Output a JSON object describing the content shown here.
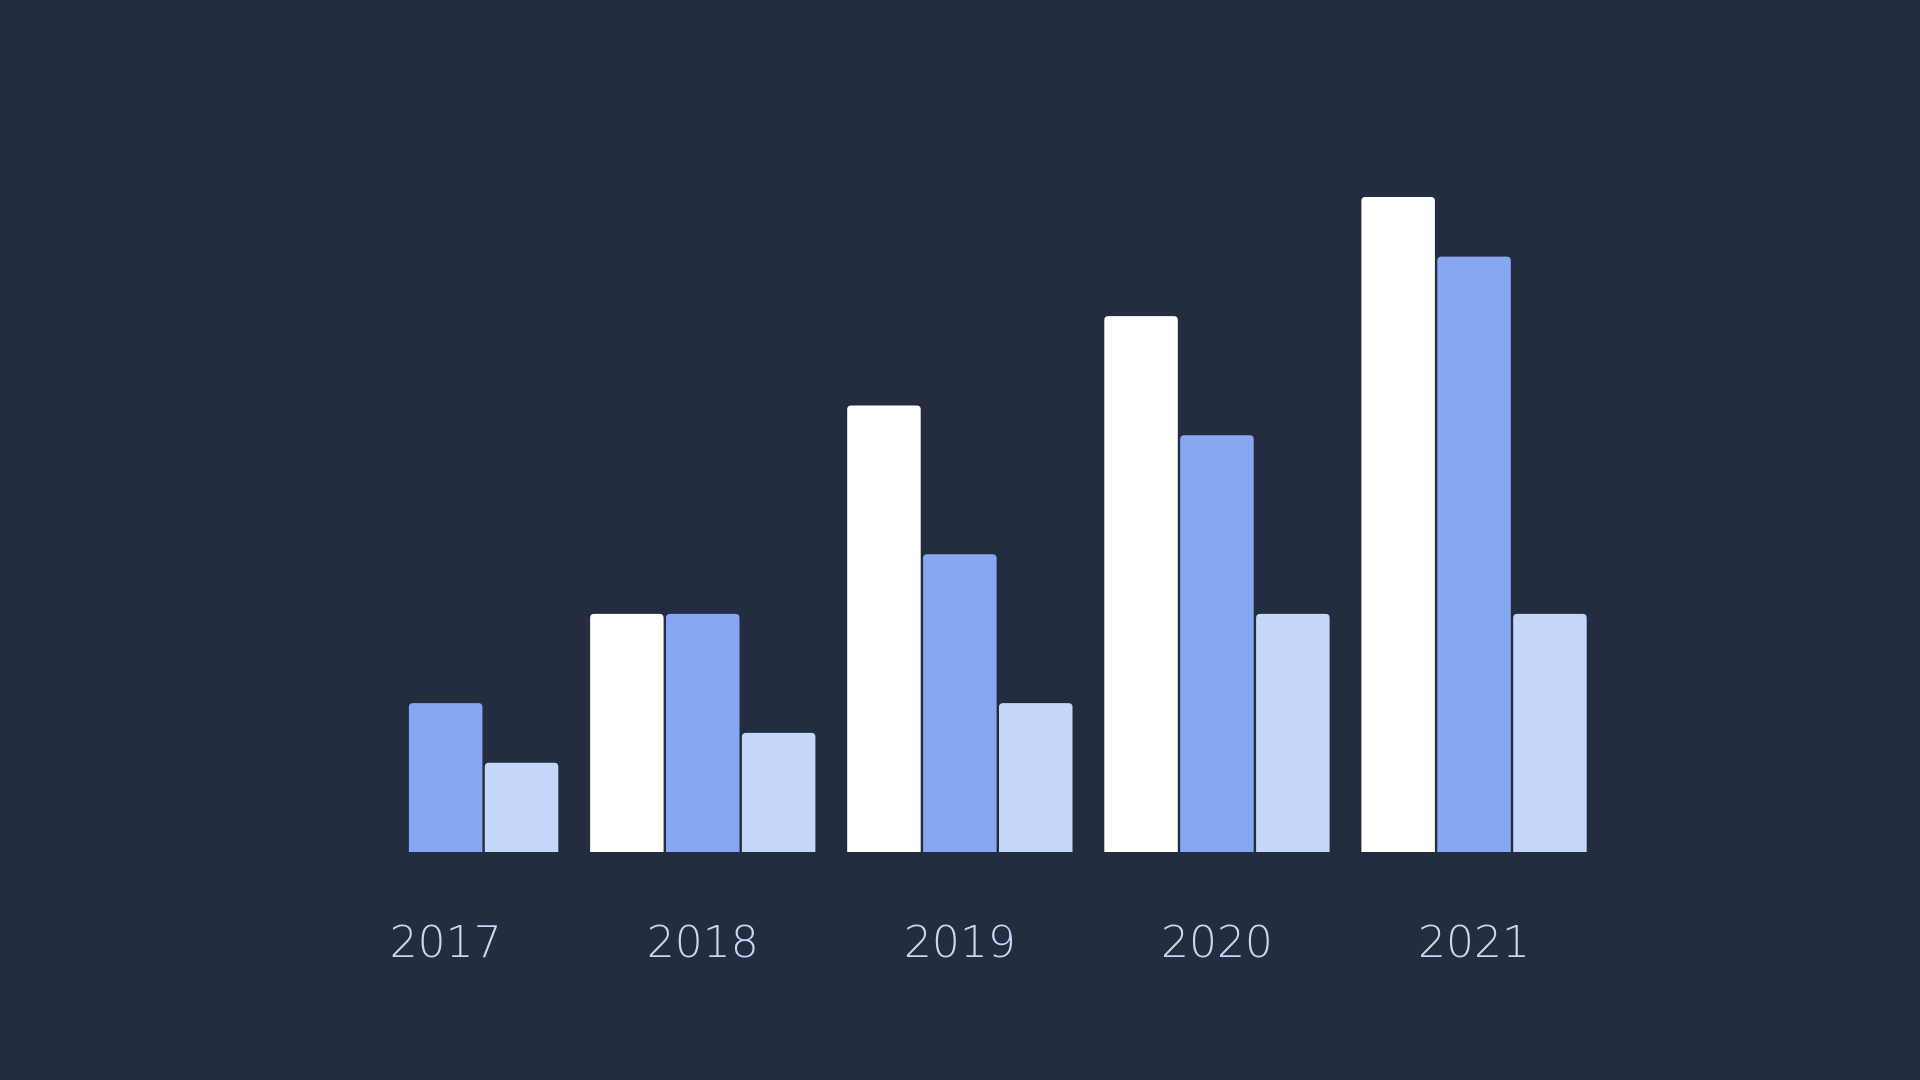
{
  "chart_data": {
    "type": "bar",
    "categories": [
      "2017",
      "2018",
      "2019",
      "2020",
      "2021"
    ],
    "series": [
      {
        "color": "#ffffff",
        "values": [
          0,
          8,
          15,
          18,
          22
        ]
      },
      {
        "color": "#88a7f2",
        "values": [
          5,
          8,
          10,
          14,
          20
        ]
      },
      {
        "color": "#c5d7f9",
        "values": [
          3,
          4,
          5,
          8,
          8
        ]
      }
    ]
  }
}
